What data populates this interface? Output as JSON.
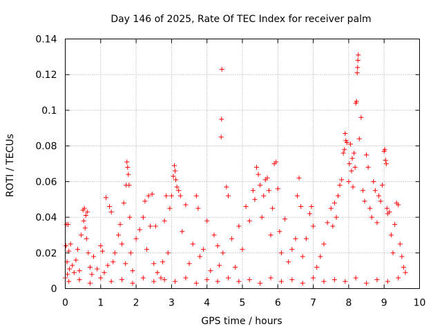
{
  "chart_data": {
    "type": "scatter",
    "title": "Day 146 of 2025, Rate Of TEC Index for receiver palm",
    "xlabel": "GPS time / hours",
    "ylabel": "ROTI / TECUs",
    "xlim": [
      0,
      10
    ],
    "ylim": [
      0,
      0.14
    ],
    "xticks": [
      "0",
      "1",
      "2",
      "3",
      "4",
      "5",
      "6",
      "7",
      "8",
      "9",
      "10"
    ],
    "yticks": [
      "0",
      "0.02",
      "0.04",
      "0.06",
      "0.08",
      "0.1",
      "0.12",
      "0.14"
    ],
    "grid": true,
    "marker": "+",
    "marker_color": "#ff0000",
    "series": [
      {
        "name": "ROTI",
        "points": [
          [
            0.0,
            0.006
          ],
          [
            0.02,
            0.024
          ],
          [
            0.03,
            0.036
          ],
          [
            0.05,
            0.015
          ],
          [
            0.06,
            0.008
          ],
          [
            0.08,
            0.036
          ],
          [
            0.1,
            0.021
          ],
          [
            0.12,
            0.011
          ],
          [
            0.15,
            0.025
          ],
          [
            0.2,
            0.013
          ],
          [
            0.25,
            0.009
          ],
          [
            0.3,
            0.016
          ],
          [
            0.35,
            0.022
          ],
          [
            0.4,
            0.01
          ],
          [
            0.45,
            0.03
          ],
          [
            0.5,
            0.044
          ],
          [
            0.52,
            0.038
          ],
          [
            0.54,
            0.045
          ],
          [
            0.56,
            0.034
          ],
          [
            0.58,
            0.041
          ],
          [
            0.6,
            0.028
          ],
          [
            0.62,
            0.043
          ],
          [
            0.65,
            0.02
          ],
          [
            0.7,
            0.012
          ],
          [
            0.75,
            0.008
          ],
          [
            0.8,
            0.018
          ],
          [
            0.9,
            0.011
          ],
          [
            1.0,
            0.024
          ],
          [
            1.05,
            0.021
          ],
          [
            1.1,
            0.009
          ],
          [
            1.15,
            0.051
          ],
          [
            1.2,
            0.013
          ],
          [
            1.25,
            0.046
          ],
          [
            1.3,
            0.043
          ],
          [
            1.35,
            0.015
          ],
          [
            1.4,
            0.02
          ],
          [
            1.5,
            0.03
          ],
          [
            1.55,
            0.036
          ],
          [
            1.6,
            0.025
          ],
          [
            1.65,
            0.048
          ],
          [
            1.7,
            0.014
          ],
          [
            1.72,
            0.058
          ],
          [
            1.74,
            0.071
          ],
          [
            1.76,
            0.068
          ],
          [
            1.78,
            0.064
          ],
          [
            1.8,
            0.058
          ],
          [
            1.82,
            0.04
          ],
          [
            1.85,
            0.02
          ],
          [
            1.9,
            0.01
          ],
          [
            2.0,
            0.028
          ],
          [
            2.1,
            0.033
          ],
          [
            2.2,
            0.04
          ],
          [
            2.25,
            0.049
          ],
          [
            2.3,
            0.022
          ],
          [
            2.35,
            0.052
          ],
          [
            2.4,
            0.035
          ],
          [
            2.45,
            0.053
          ],
          [
            2.5,
            0.014
          ],
          [
            2.55,
            0.035
          ],
          [
            2.6,
            0.009
          ],
          [
            2.7,
            0.006
          ],
          [
            2.75,
            0.015
          ],
          [
            2.8,
            0.038
          ],
          [
            2.85,
            0.052
          ],
          [
            2.9,
            0.02
          ],
          [
            2.95,
            0.045
          ],
          [
            3.0,
            0.052
          ],
          [
            3.05,
            0.063
          ],
          [
            3.08,
            0.069
          ],
          [
            3.1,
            0.066
          ],
          [
            3.12,
            0.061
          ],
          [
            3.15,
            0.057
          ],
          [
            3.2,
            0.055
          ],
          [
            3.25,
            0.052
          ],
          [
            3.3,
            0.032
          ],
          [
            3.4,
            0.047
          ],
          [
            3.5,
            0.014
          ],
          [
            3.6,
            0.025
          ],
          [
            3.7,
            0.052
          ],
          [
            3.75,
            0.045
          ],
          [
            3.8,
            0.018
          ],
          [
            3.9,
            0.022
          ],
          [
            4.0,
            0.038
          ],
          [
            4.1,
            0.01
          ],
          [
            4.2,
            0.03
          ],
          [
            4.3,
            0.024
          ],
          [
            4.35,
            0.013
          ],
          [
            4.4,
            0.085
          ],
          [
            4.41,
            0.095
          ],
          [
            4.42,
            0.123
          ],
          [
            4.45,
            0.02
          ],
          [
            4.55,
            0.057
          ],
          [
            4.6,
            0.052
          ],
          [
            4.7,
            0.028
          ],
          [
            4.8,
            0.012
          ],
          [
            4.9,
            0.035
          ],
          [
            5.0,
            0.022
          ],
          [
            5.1,
            0.046
          ],
          [
            5.2,
            0.038
          ],
          [
            5.3,
            0.055
          ],
          [
            5.35,
            0.05
          ],
          [
            5.4,
            0.068
          ],
          [
            5.45,
            0.064
          ],
          [
            5.5,
            0.058
          ],
          [
            5.55,
            0.04
          ],
          [
            5.6,
            0.052
          ],
          [
            5.65,
            0.061
          ],
          [
            5.7,
            0.062
          ],
          [
            5.75,
            0.055
          ],
          [
            5.8,
            0.03
          ],
          [
            5.85,
            0.045
          ],
          [
            5.9,
            0.07
          ],
          [
            5.95,
            0.071
          ],
          [
            6.0,
            0.056
          ],
          [
            6.05,
            0.032
          ],
          [
            6.1,
            0.02
          ],
          [
            6.2,
            0.039
          ],
          [
            6.3,
            0.015
          ],
          [
            6.4,
            0.022
          ],
          [
            6.5,
            0.028
          ],
          [
            6.55,
            0.052
          ],
          [
            6.6,
            0.062
          ],
          [
            6.65,
            0.046
          ],
          [
            6.7,
            0.018
          ],
          [
            6.8,
            0.028
          ],
          [
            6.9,
            0.042
          ],
          [
            6.95,
            0.046
          ],
          [
            7.0,
            0.035
          ],
          [
            7.1,
            0.012
          ],
          [
            7.2,
            0.018
          ],
          [
            7.3,
            0.025
          ],
          [
            7.4,
            0.037
          ],
          [
            7.5,
            0.045
          ],
          [
            7.55,
            0.035
          ],
          [
            7.6,
            0.048
          ],
          [
            7.65,
            0.04
          ],
          [
            7.7,
            0.052
          ],
          [
            7.75,
            0.058
          ],
          [
            7.8,
            0.061
          ],
          [
            7.85,
            0.076
          ],
          [
            7.88,
            0.078
          ],
          [
            7.9,
            0.087
          ],
          [
            7.92,
            0.083
          ],
          [
            7.95,
            0.082
          ],
          [
            8.0,
            0.06
          ],
          [
            8.02,
            0.07
          ],
          [
            8.05,
            0.081
          ],
          [
            8.08,
            0.066
          ],
          [
            8.1,
            0.073
          ],
          [
            8.12,
            0.057
          ],
          [
            8.15,
            0.076
          ],
          [
            8.18,
            0.068
          ],
          [
            8.2,
            0.104
          ],
          [
            8.22,
            0.105
          ],
          [
            8.24,
            0.121
          ],
          [
            8.25,
            0.124
          ],
          [
            8.26,
            0.128
          ],
          [
            8.27,
            0.131
          ],
          [
            8.3,
            0.084
          ],
          [
            8.35,
            0.096
          ],
          [
            8.4,
            0.055
          ],
          [
            8.45,
            0.049
          ],
          [
            8.5,
            0.075
          ],
          [
            8.55,
            0.068
          ],
          [
            8.6,
            0.045
          ],
          [
            8.65,
            0.04
          ],
          [
            8.7,
            0.06
          ],
          [
            8.75,
            0.055
          ],
          [
            8.8,
            0.037
          ],
          [
            8.85,
            0.052
          ],
          [
            8.9,
            0.049
          ],
          [
            8.95,
            0.058
          ],
          [
            9.0,
            0.077
          ],
          [
            9.02,
            0.078
          ],
          [
            9.04,
            0.072
          ],
          [
            9.06,
            0.07
          ],
          [
            9.08,
            0.045
          ],
          [
            9.1,
            0.042
          ],
          [
            9.15,
            0.043
          ],
          [
            9.2,
            0.03
          ],
          [
            9.25,
            0.02
          ],
          [
            9.3,
            0.036
          ],
          [
            9.35,
            0.048
          ],
          [
            9.4,
            0.047
          ],
          [
            9.45,
            0.025
          ],
          [
            9.5,
            0.018
          ],
          [
            9.55,
            0.012
          ],
          [
            9.6,
            0.009
          ],
          [
            0.1,
            0.004
          ],
          [
            0.4,
            0.005
          ],
          [
            0.7,
            0.003
          ],
          [
            1.0,
            0.006
          ],
          [
            1.3,
            0.004
          ],
          [
            1.6,
            0.005
          ],
          [
            1.9,
            0.003
          ],
          [
            2.2,
            0.006
          ],
          [
            2.5,
            0.004
          ],
          [
            2.8,
            0.005
          ],
          [
            3.1,
            0.004
          ],
          [
            3.4,
            0.006
          ],
          [
            3.7,
            0.003
          ],
          [
            4.0,
            0.005
          ],
          [
            4.3,
            0.004
          ],
          [
            4.6,
            0.006
          ],
          [
            4.9,
            0.004
          ],
          [
            5.2,
            0.005
          ],
          [
            5.5,
            0.003
          ],
          [
            5.8,
            0.006
          ],
          [
            6.1,
            0.004
          ],
          [
            6.4,
            0.005
          ],
          [
            6.7,
            0.003
          ],
          [
            7.0,
            0.006
          ],
          [
            7.3,
            0.004
          ],
          [
            7.6,
            0.005
          ],
          [
            7.9,
            0.004
          ],
          [
            8.2,
            0.006
          ],
          [
            8.5,
            0.003
          ],
          [
            8.8,
            0.005
          ],
          [
            9.1,
            0.004
          ],
          [
            9.4,
            0.006
          ]
        ]
      }
    ]
  }
}
